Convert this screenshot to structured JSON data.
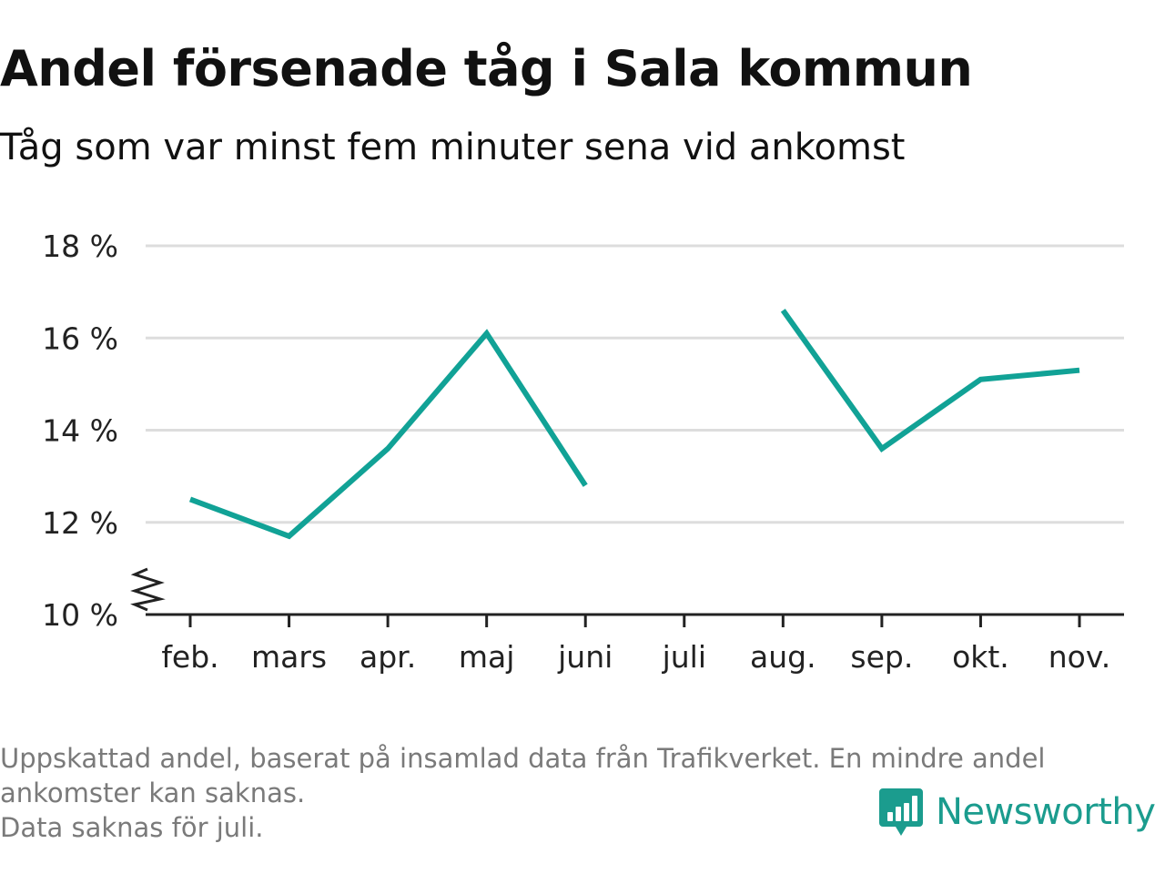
{
  "header": {
    "title": "Andel försenade tåg i Sala kommun",
    "subtitle": "Tåg som var minst fem minuter sena vid ankomst"
  },
  "footnote": {
    "line1": "Uppskattad andel, baserat på insamlad data från Trafikverket. En mindre andel",
    "line2": "ankomster kan saknas.",
    "line3": "Data saknas för juli."
  },
  "brand": {
    "name": "Newsworthy",
    "logo_icon": "bar-chart-speech-bubble-icon"
  },
  "colors": {
    "line": "#11a296",
    "grid": "#dddddd",
    "axis": "#222222",
    "brand": "#1b9c8e",
    "footnote": "#7a7a7a"
  },
  "chart_data": {
    "type": "line",
    "title": "Andel försenade tåg i Sala kommun",
    "subtitle": "Tåg som var minst fem minuter sena vid ankomst",
    "categories": [
      "feb.",
      "mars",
      "apr.",
      "maj",
      "juni",
      "juli",
      "aug.",
      "sep.",
      "okt.",
      "nov."
    ],
    "series": [
      {
        "values": [
          12.5,
          11.7,
          13.6,
          16.1,
          12.8,
          null,
          16.6,
          13.6,
          15.1,
          15.3
        ]
      }
    ],
    "yticks": [
      "10 %",
      "12 %",
      "14 %",
      "16 %",
      "18 %"
    ],
    "ytick_values": [
      10,
      12,
      14,
      16,
      18
    ],
    "ylim": [
      10,
      18
    ],
    "y_axis_break": true,
    "grid": true,
    "legend": "none"
  }
}
